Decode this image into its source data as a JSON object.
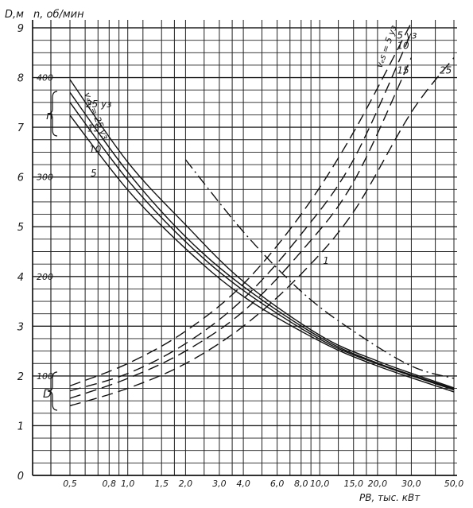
{
  "chart_data": {
    "type": "line",
    "title": "",
    "x_axis": {
      "label": "PВ, тыс. кВт",
      "scale": "log",
      "ticks": [
        0.5,
        0.8,
        1.0,
        1.5,
        2.0,
        3.0,
        4.0,
        6.0,
        8.0,
        10.0,
        15.0,
        20.0,
        30.0,
        50.0
      ],
      "tick_labels": [
        "0,5",
        "0,8",
        "1,0",
        "1,5",
        "2,0",
        "3,0",
        "4,0",
        "6,0",
        "8,0",
        "10,0",
        "15,0",
        "20,0",
        "30,0",
        "50,0"
      ]
    },
    "y_axis_D": {
      "label": "D,м",
      "ticks": [
        0,
        1,
        2,
        3,
        4,
        5,
        6,
        7,
        8,
        9
      ],
      "tick_labels": [
        "0",
        "1",
        "2",
        "3",
        "4",
        "5",
        "6",
        "7",
        "8",
        "9"
      ],
      "ylim": [
        0,
        9
      ]
    },
    "y_axis_n": {
      "label": "n, об/мин",
      "ticks": [
        100,
        200,
        300,
        400
      ],
      "tick_labels": [
        "100",
        "200",
        "300",
        "400"
      ]
    },
    "group_labels": {
      "n": "n",
      "D": "D"
    },
    "n_param_label": "vₑs = 25 уз",
    "D_param_label": "vₑs = 5 уз",
    "series": [
      {
        "group": "n",
        "name": "25",
        "label": "25 уз",
        "style": "solid",
        "x": [
          0.5,
          1.0,
          2.0,
          4.0,
          10.0,
          20.0,
          50.0
        ],
        "y": [
          398,
          315,
          252,
          195,
          141,
          115,
          88
        ]
      },
      {
        "group": "n",
        "name": "15",
        "label": "15",
        "style": "solid",
        "x": [
          0.5,
          1.0,
          2.0,
          4.0,
          10.0,
          20.0,
          50.0
        ],
        "y": [
          385,
          305,
          240,
          190,
          139,
          113,
          87
        ]
      },
      {
        "group": "n",
        "name": "10",
        "label": "10",
        "style": "solid",
        "x": [
          0.5,
          1.0,
          2.0,
          4.0,
          10.0,
          20.0,
          50.0
        ],
        "y": [
          375,
          297,
          235,
          186,
          137,
          112,
          86
        ]
      },
      {
        "group": "n",
        "name": "5",
        "label": "5",
        "style": "solid",
        "x": [
          0.5,
          1.0,
          2.0,
          4.0,
          10.0,
          20.0,
          50.0
        ],
        "y": [
          362,
          287,
          228,
          180,
          135,
          110,
          84
        ]
      },
      {
        "group": "D",
        "name": "5",
        "label": "5 уз",
        "style": "dashed",
        "x": [
          0.5,
          1.0,
          2.0,
          4.0,
          8.0,
          15.0,
          30.0
        ],
        "y": [
          1.8,
          2.25,
          2.9,
          3.85,
          5.25,
          6.9,
          9.1
        ]
      },
      {
        "group": "D",
        "name": "10",
        "label": "10",
        "style": "dashed",
        "x": [
          0.5,
          1.0,
          2.0,
          4.0,
          8.0,
          15.0,
          30.0
        ],
        "y": [
          1.7,
          2.05,
          2.65,
          3.55,
          4.85,
          6.35,
          8.9
        ]
      },
      {
        "group": "D",
        "name": "15",
        "label": "15",
        "style": "dashed",
        "x": [
          0.5,
          1.0,
          2.0,
          4.0,
          8.0,
          15.0,
          30.0
        ],
        "y": [
          1.55,
          1.95,
          2.5,
          3.3,
          4.5,
          5.9,
          8.4
        ]
      },
      {
        "group": "D",
        "name": "25",
        "label": "25",
        "style": "dashed",
        "x": [
          0.5,
          1.0,
          2.0,
          4.0,
          8.0,
          15.0,
          30.0,
          50.0
        ],
        "y": [
          1.4,
          1.75,
          2.25,
          3.0,
          4.05,
          5.3,
          7.3,
          8.4
        ]
      },
      {
        "group": "boundary",
        "name": "1",
        "label": "1",
        "style": "dashdot",
        "x": [
          2.0,
          4.0,
          8.0,
          15.0,
          30.0,
          50.0
        ],
        "y": [
          6.35,
          4.9,
          3.7,
          2.9,
          2.2,
          1.95
        ]
      }
    ],
    "grid": true,
    "legend": "none"
  }
}
